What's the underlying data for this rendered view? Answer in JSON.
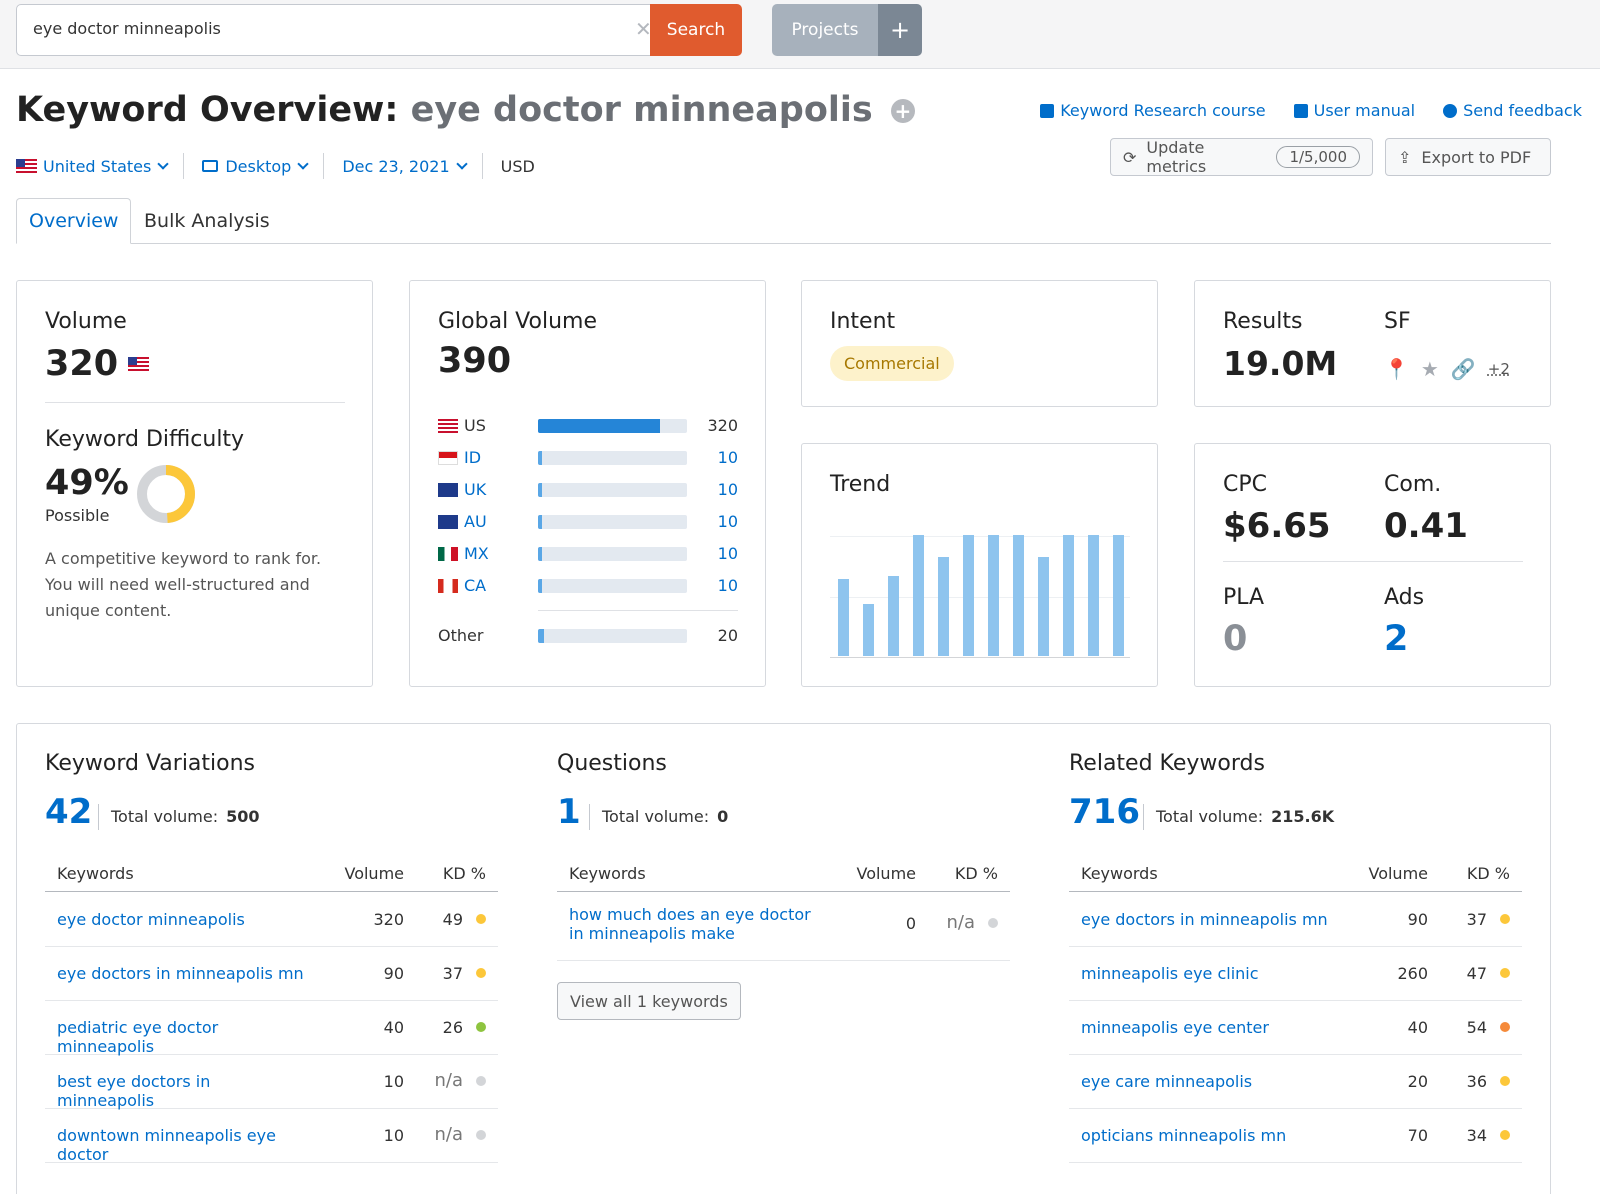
{
  "search": {
    "query": "eye doctor minneapolis",
    "button": "Search"
  },
  "projects": {
    "label": "Projects",
    "plus": "+"
  },
  "header": {
    "title_prefix": "Keyword Overview:",
    "title_keyword": "eye doctor minneapolis",
    "links": [
      "Keyword Research course",
      "User manual",
      "Send feedback"
    ],
    "update_metrics": "Update metrics",
    "update_counter": "1/5,000",
    "export": "Export to PDF"
  },
  "filters": {
    "country": "United States",
    "device": "Desktop",
    "date": "Dec 23, 2021",
    "currency": "USD"
  },
  "tabs": [
    "Overview",
    "Bulk Analysis"
  ],
  "volume": {
    "label": "Volume",
    "value": "320",
    "kd_label": "Keyword Difficulty",
    "kd_value": "49%",
    "kd_status": "Possible",
    "kd_percent": 49,
    "kd_desc": [
      "A competitive keyword to rank for.",
      "You will need well-structured and",
      "unique content."
    ]
  },
  "global_volume": {
    "label": "Global Volume",
    "value": "390",
    "rows": [
      {
        "code": "US",
        "value": "320",
        "fill": 0.82
      },
      {
        "code": "ID",
        "value": "10",
        "fill": 0.02
      },
      {
        "code": "UK",
        "value": "10",
        "fill": 0.02
      },
      {
        "code": "AU",
        "value": "10",
        "fill": 0.02
      },
      {
        "code": "MX",
        "value": "10",
        "fill": 0.02
      },
      {
        "code": "CA",
        "value": "10",
        "fill": 0.02
      }
    ],
    "other_label": "Other",
    "other_value": "20",
    "other_fill": 0.04
  },
  "intent": {
    "label": "Intent",
    "value": "Commercial"
  },
  "results": {
    "label": "Results",
    "value": "19.0M",
    "sf_label": "SF",
    "sf_more": "+2"
  },
  "trend": {
    "label": "Trend",
    "values": [
      0.64,
      0.43,
      0.66,
      1.0,
      0.82,
      1.0,
      1.0,
      1.0,
      0.82,
      1.0,
      1.0,
      1.0
    ]
  },
  "cpc": {
    "cpc_label": "CPC",
    "cpc_value": "$6.65",
    "com_label": "Com.",
    "com_value": "0.41",
    "pla_label": "PLA",
    "pla_value": "0",
    "ads_label": "Ads",
    "ads_value": "2"
  },
  "variations": {
    "title": "Keyword Variations",
    "count": "42",
    "total_label": "Total volume:",
    "total_value": "500",
    "headers": [
      "Keywords",
      "Volume",
      "KD %"
    ],
    "rows": [
      {
        "kw": "eye doctor minneapolis",
        "vol": "320",
        "kd": "49",
        "color": "#fcc73a"
      },
      {
        "kw": "eye doctors in minneapolis mn",
        "vol": "90",
        "kd": "37",
        "color": "#fcc73a"
      },
      {
        "kw": "pediatric eye doctor minneapolis",
        "vol": "40",
        "kd": "26",
        "color": "#8ec43f"
      },
      {
        "kw": "best eye doctors in minneapolis",
        "vol": "10",
        "kd": "n/a",
        "color": "#d3d5d8"
      },
      {
        "kw": "downtown minneapolis eye doctor",
        "vol": "10",
        "kd": "n/a",
        "color": "#d3d5d8"
      }
    ]
  },
  "questions": {
    "title": "Questions",
    "count": "1",
    "total_label": "Total volume:",
    "total_value": "0",
    "headers": [
      "Keywords",
      "Volume",
      "KD %"
    ],
    "rows": [
      {
        "kw": "how much does an eye doctor in minneapolis make",
        "vol": "0",
        "kd": "n/a",
        "color": "#d3d5d8"
      }
    ],
    "view_all": "View all 1 keywords"
  },
  "related": {
    "title": "Related Keywords",
    "count": "716",
    "total_label": "Total volume:",
    "total_value": "215.6K",
    "headers": [
      "Keywords",
      "Volume",
      "KD %"
    ],
    "rows": [
      {
        "kw": "eye doctors in minneapolis mn",
        "vol": "90",
        "kd": "37",
        "color": "#fcc73a"
      },
      {
        "kw": "minneapolis eye clinic",
        "vol": "260",
        "kd": "47",
        "color": "#fcc73a"
      },
      {
        "kw": "minneapolis eye center",
        "vol": "40",
        "kd": "54",
        "color": "#f58a3a"
      },
      {
        "kw": "eye care minneapolis",
        "vol": "20",
        "kd": "36",
        "color": "#fcc73a"
      },
      {
        "kw": "opticians minneapolis mn",
        "vol": "70",
        "kd": "34",
        "color": "#fcc73a"
      }
    ]
  }
}
